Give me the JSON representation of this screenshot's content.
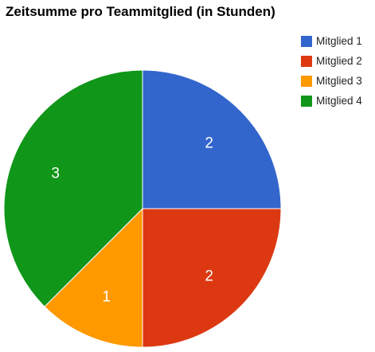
{
  "chart_data": {
    "type": "pie",
    "title": "Zeitsumme pro Teammitglied (in Stunden)",
    "categories": [
      "Mitglied 1",
      "Mitglied 2",
      "Mitglied 3",
      "Mitglied 4"
    ],
    "values": [
      2,
      2,
      1,
      3
    ],
    "data_labels": [
      "2",
      "2",
      "1",
      "3"
    ],
    "colors": [
      "#3366cc",
      "#dc3912",
      "#ff9900",
      "#109618"
    ],
    "legend_position": "right",
    "start_angle": "top, clockwise"
  }
}
